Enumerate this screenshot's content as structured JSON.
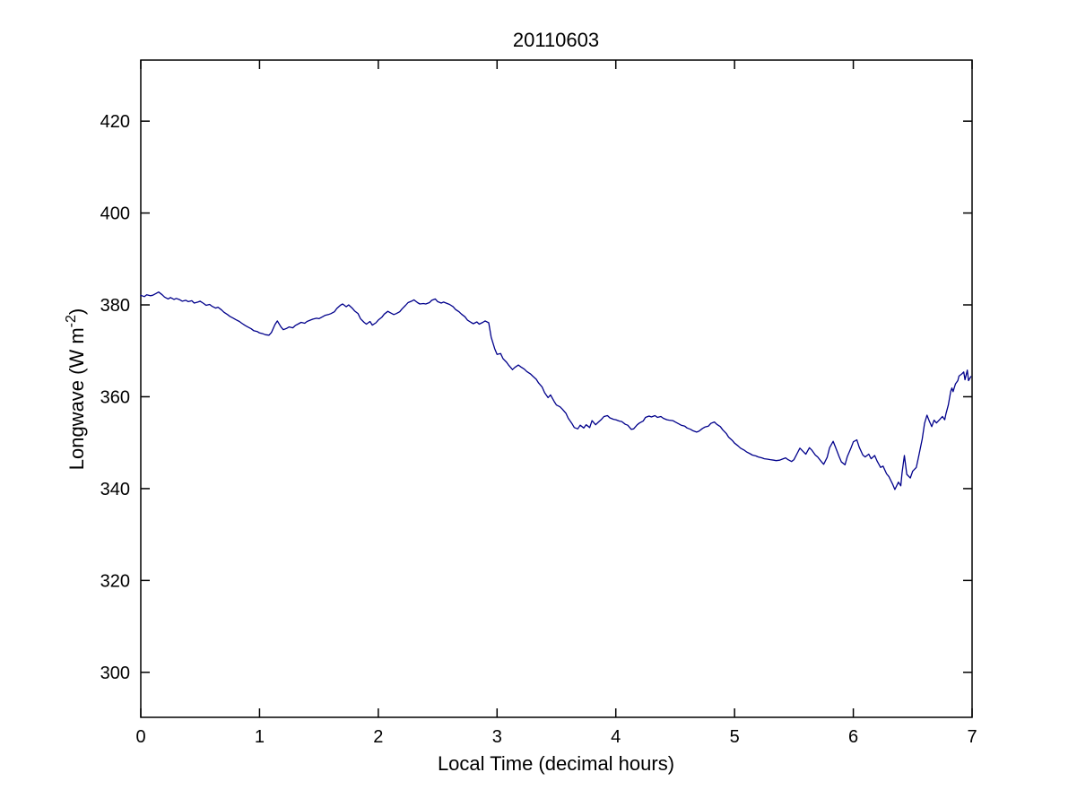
{
  "figure": {
    "title": "20110603",
    "xlabel": "Local Time (decimal hours)",
    "ylabel_prefix": "Longwave (W m",
    "ylabel_superscript": "-2",
    "ylabel_suffix": ")"
  },
  "colors": {
    "line": "#00008B",
    "axis": "#000000",
    "background": "#FFFFFF"
  },
  "chart_data": {
    "type": "line",
    "title": "20110603",
    "xlabel": "Local Time (decimal hours)",
    "ylabel": "Longwave (W m^-2)",
    "xlim": [
      0,
      7
    ],
    "ylim": [
      290.2,
      433.3
    ],
    "xticks": [
      0,
      1,
      2,
      3,
      4,
      5,
      6,
      7
    ],
    "yticks": [
      300,
      320,
      340,
      360,
      380,
      400,
      420
    ],
    "grid": false,
    "legend": null,
    "series": [
      {
        "name": "longwave",
        "color": "#00008B",
        "points": [
          [
            0.0,
            382.1
          ],
          [
            0.03,
            381.8
          ],
          [
            0.05,
            382.2
          ],
          [
            0.08,
            382.0
          ],
          [
            0.1,
            382.1
          ],
          [
            0.13,
            382.5
          ],
          [
            0.15,
            382.8
          ],
          [
            0.18,
            382.2
          ],
          [
            0.2,
            381.7
          ],
          [
            0.23,
            381.3
          ],
          [
            0.25,
            381.6
          ],
          [
            0.28,
            381.2
          ],
          [
            0.3,
            381.4
          ],
          [
            0.33,
            381.1
          ],
          [
            0.35,
            380.8
          ],
          [
            0.38,
            381.0
          ],
          [
            0.4,
            380.7
          ],
          [
            0.43,
            380.9
          ],
          [
            0.45,
            380.4
          ],
          [
            0.48,
            380.6
          ],
          [
            0.5,
            380.8
          ],
          [
            0.53,
            380.3
          ],
          [
            0.55,
            379.9
          ],
          [
            0.58,
            380.1
          ],
          [
            0.6,
            379.7
          ],
          [
            0.63,
            379.3
          ],
          [
            0.65,
            379.5
          ],
          [
            0.68,
            378.9
          ],
          [
            0.7,
            378.4
          ],
          [
            0.73,
            377.9
          ],
          [
            0.75,
            377.5
          ],
          [
            0.78,
            377.1
          ],
          [
            0.8,
            376.8
          ],
          [
            0.83,
            376.4
          ],
          [
            0.85,
            376.0
          ],
          [
            0.88,
            375.5
          ],
          [
            0.9,
            375.2
          ],
          [
            0.93,
            374.8
          ],
          [
            0.95,
            374.4
          ],
          [
            0.98,
            374.2
          ],
          [
            1.0,
            373.9
          ],
          [
            1.03,
            373.7
          ],
          [
            1.05,
            373.5
          ],
          [
            1.08,
            373.4
          ],
          [
            1.1,
            374.0
          ],
          [
            1.13,
            375.7
          ],
          [
            1.15,
            376.5
          ],
          [
            1.18,
            375.2
          ],
          [
            1.2,
            374.6
          ],
          [
            1.23,
            374.9
          ],
          [
            1.25,
            375.2
          ],
          [
            1.28,
            375.0
          ],
          [
            1.3,
            375.5
          ],
          [
            1.33,
            375.9
          ],
          [
            1.35,
            376.2
          ],
          [
            1.38,
            376.0
          ],
          [
            1.4,
            376.4
          ],
          [
            1.43,
            376.7
          ],
          [
            1.45,
            376.9
          ],
          [
            1.48,
            377.1
          ],
          [
            1.5,
            377.0
          ],
          [
            1.53,
            377.4
          ],
          [
            1.55,
            377.7
          ],
          [
            1.58,
            377.9
          ],
          [
            1.6,
            378.1
          ],
          [
            1.63,
            378.5
          ],
          [
            1.65,
            379.2
          ],
          [
            1.68,
            379.9
          ],
          [
            1.7,
            380.2
          ],
          [
            1.73,
            379.6
          ],
          [
            1.75,
            380.0
          ],
          [
            1.78,
            379.3
          ],
          [
            1.8,
            378.7
          ],
          [
            1.83,
            378.1
          ],
          [
            1.85,
            377.0
          ],
          [
            1.88,
            376.2
          ],
          [
            1.9,
            375.8
          ],
          [
            1.93,
            376.4
          ],
          [
            1.95,
            375.6
          ],
          [
            1.98,
            376.1
          ],
          [
            2.0,
            376.7
          ],
          [
            2.03,
            377.3
          ],
          [
            2.05,
            378.0
          ],
          [
            2.08,
            378.6
          ],
          [
            2.1,
            378.3
          ],
          [
            2.13,
            377.9
          ],
          [
            2.15,
            378.1
          ],
          [
            2.18,
            378.5
          ],
          [
            2.2,
            379.1
          ],
          [
            2.23,
            379.9
          ],
          [
            2.25,
            380.5
          ],
          [
            2.28,
            380.8
          ],
          [
            2.3,
            381.1
          ],
          [
            2.33,
            380.5
          ],
          [
            2.35,
            380.2
          ],
          [
            2.38,
            380.3
          ],
          [
            2.4,
            380.2
          ],
          [
            2.43,
            380.5
          ],
          [
            2.45,
            381.0
          ],
          [
            2.48,
            381.3
          ],
          [
            2.5,
            380.7
          ],
          [
            2.53,
            380.4
          ],
          [
            2.55,
            380.6
          ],
          [
            2.58,
            380.3
          ],
          [
            2.6,
            380.1
          ],
          [
            2.63,
            379.6
          ],
          [
            2.65,
            379.0
          ],
          [
            2.68,
            378.5
          ],
          [
            2.7,
            378.0
          ],
          [
            2.73,
            377.4
          ],
          [
            2.75,
            376.7
          ],
          [
            2.78,
            376.2
          ],
          [
            2.8,
            375.9
          ],
          [
            2.83,
            376.3
          ],
          [
            2.85,
            375.8
          ],
          [
            2.88,
            376.2
          ],
          [
            2.9,
            376.5
          ],
          [
            2.93,
            376.1
          ],
          [
            2.95,
            373.0
          ],
          [
            2.98,
            370.5
          ],
          [
            3.0,
            369.2
          ],
          [
            3.03,
            369.4
          ],
          [
            3.05,
            368.3
          ],
          [
            3.08,
            367.5
          ],
          [
            3.1,
            366.8
          ],
          [
            3.13,
            365.9
          ],
          [
            3.15,
            366.4
          ],
          [
            3.18,
            366.9
          ],
          [
            3.2,
            366.5
          ],
          [
            3.23,
            366.0
          ],
          [
            3.25,
            365.5
          ],
          [
            3.28,
            365.0
          ],
          [
            3.3,
            364.5
          ],
          [
            3.33,
            363.8
          ],
          [
            3.35,
            363.0
          ],
          [
            3.38,
            362.1
          ],
          [
            3.4,
            360.9
          ],
          [
            3.43,
            359.8
          ],
          [
            3.45,
            360.4
          ],
          [
            3.48,
            359.0
          ],
          [
            3.5,
            358.2
          ],
          [
            3.53,
            357.8
          ],
          [
            3.55,
            357.3
          ],
          [
            3.58,
            356.4
          ],
          [
            3.6,
            355.3
          ],
          [
            3.63,
            354.2
          ],
          [
            3.65,
            353.3
          ],
          [
            3.68,
            353.0
          ],
          [
            3.7,
            353.8
          ],
          [
            3.73,
            353.2
          ],
          [
            3.75,
            353.9
          ],
          [
            3.78,
            353.3
          ],
          [
            3.8,
            354.8
          ],
          [
            3.83,
            353.9
          ],
          [
            3.85,
            354.4
          ],
          [
            3.88,
            355.1
          ],
          [
            3.9,
            355.7
          ],
          [
            3.93,
            355.9
          ],
          [
            3.95,
            355.4
          ],
          [
            3.98,
            355.1
          ],
          [
            4.0,
            355.0
          ],
          [
            4.03,
            354.7
          ],
          [
            4.05,
            354.6
          ],
          [
            4.08,
            354.0
          ],
          [
            4.1,
            353.8
          ],
          [
            4.13,
            352.9
          ],
          [
            4.15,
            353.0
          ],
          [
            4.18,
            353.9
          ],
          [
            4.2,
            354.3
          ],
          [
            4.23,
            354.7
          ],
          [
            4.25,
            355.5
          ],
          [
            4.28,
            355.8
          ],
          [
            4.3,
            355.6
          ],
          [
            4.33,
            355.9
          ],
          [
            4.35,
            355.5
          ],
          [
            4.38,
            355.7
          ],
          [
            4.4,
            355.3
          ],
          [
            4.43,
            355.0
          ],
          [
            4.45,
            354.9
          ],
          [
            4.48,
            354.8
          ],
          [
            4.5,
            354.5
          ],
          [
            4.53,
            354.1
          ],
          [
            4.55,
            353.8
          ],
          [
            4.58,
            353.6
          ],
          [
            4.6,
            353.2
          ],
          [
            4.63,
            352.9
          ],
          [
            4.65,
            352.6
          ],
          [
            4.68,
            352.3
          ],
          [
            4.7,
            352.5
          ],
          [
            4.73,
            353.1
          ],
          [
            4.75,
            353.4
          ],
          [
            4.78,
            353.6
          ],
          [
            4.8,
            354.2
          ],
          [
            4.83,
            354.5
          ],
          [
            4.85,
            354.0
          ],
          [
            4.88,
            353.5
          ],
          [
            4.9,
            352.8
          ],
          [
            4.93,
            352.0
          ],
          [
            4.95,
            351.2
          ],
          [
            4.98,
            350.5
          ],
          [
            5.0,
            349.9
          ],
          [
            5.03,
            349.3
          ],
          [
            5.05,
            348.8
          ],
          [
            5.08,
            348.4
          ],
          [
            5.1,
            348.0
          ],
          [
            5.13,
            347.6
          ],
          [
            5.15,
            347.3
          ],
          [
            5.18,
            347.1
          ],
          [
            5.2,
            346.9
          ],
          [
            5.23,
            346.7
          ],
          [
            5.25,
            346.5
          ],
          [
            5.28,
            346.4
          ],
          [
            5.3,
            346.3
          ],
          [
            5.33,
            346.2
          ],
          [
            5.35,
            346.1
          ],
          [
            5.38,
            346.2
          ],
          [
            5.4,
            346.4
          ],
          [
            5.43,
            346.7
          ],
          [
            5.45,
            346.3
          ],
          [
            5.48,
            345.9
          ],
          [
            5.5,
            346.3
          ],
          [
            5.53,
            347.8
          ],
          [
            5.55,
            348.8
          ],
          [
            5.58,
            348.0
          ],
          [
            5.6,
            347.5
          ],
          [
            5.63,
            348.9
          ],
          [
            5.65,
            348.4
          ],
          [
            5.68,
            347.3
          ],
          [
            5.7,
            346.9
          ],
          [
            5.73,
            345.9
          ],
          [
            5.75,
            345.3
          ],
          [
            5.78,
            346.8
          ],
          [
            5.8,
            348.9
          ],
          [
            5.83,
            350.3
          ],
          [
            5.85,
            349.0
          ],
          [
            5.88,
            347.0
          ],
          [
            5.9,
            345.8
          ],
          [
            5.93,
            345.2
          ],
          [
            5.95,
            347.0
          ],
          [
            5.98,
            348.8
          ],
          [
            6.0,
            350.2
          ],
          [
            6.03,
            350.6
          ],
          [
            6.05,
            349.0
          ],
          [
            6.08,
            347.3
          ],
          [
            6.1,
            346.9
          ],
          [
            6.13,
            347.5
          ],
          [
            6.15,
            346.5
          ],
          [
            6.18,
            347.2
          ],
          [
            6.2,
            346.0
          ],
          [
            6.23,
            344.6
          ],
          [
            6.25,
            344.9
          ],
          [
            6.28,
            343.2
          ],
          [
            6.3,
            342.6
          ],
          [
            6.33,
            341.0
          ],
          [
            6.35,
            339.8
          ],
          [
            6.38,
            341.4
          ],
          [
            6.4,
            340.6
          ],
          [
            6.41,
            343.4
          ],
          [
            6.43,
            347.2
          ],
          [
            6.45,
            343.1
          ],
          [
            6.48,
            342.3
          ],
          [
            6.5,
            343.8
          ],
          [
            6.53,
            344.6
          ],
          [
            6.55,
            347.0
          ],
          [
            6.58,
            350.8
          ],
          [
            6.6,
            354.2
          ],
          [
            6.62,
            356.0
          ],
          [
            6.64,
            354.7
          ],
          [
            6.66,
            353.5
          ],
          [
            6.68,
            354.9
          ],
          [
            6.7,
            354.3
          ],
          [
            6.73,
            355.1
          ],
          [
            6.75,
            355.7
          ],
          [
            6.77,
            355.0
          ],
          [
            6.78,
            356.3
          ],
          [
            6.8,
            358.2
          ],
          [
            6.82,
            361.2
          ],
          [
            6.83,
            361.9
          ],
          [
            6.84,
            361.1
          ],
          [
            6.86,
            362.8
          ],
          [
            6.88,
            363.5
          ],
          [
            6.89,
            364.5
          ],
          [
            6.91,
            364.9
          ],
          [
            6.93,
            365.4
          ],
          [
            6.94,
            363.7
          ],
          [
            6.96,
            365.8
          ],
          [
            6.97,
            363.5
          ],
          [
            6.99,
            364.4
          ]
        ]
      }
    ]
  }
}
